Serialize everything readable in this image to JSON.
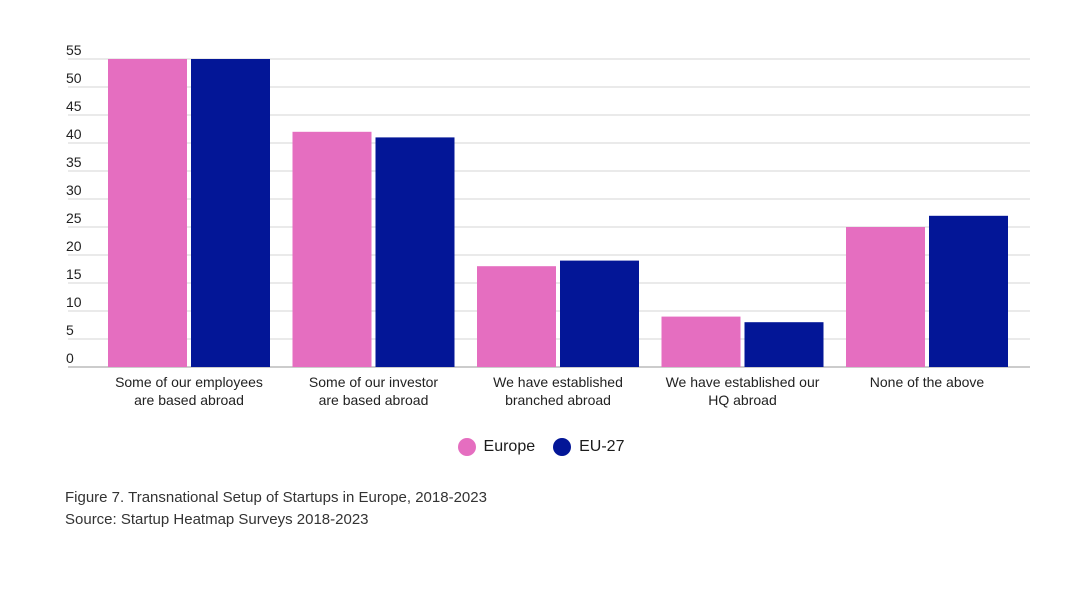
{
  "chart_data": {
    "type": "bar",
    "categories": [
      "Some of our employees\nare based abroad",
      "Some of our investor\nare based abroad",
      "We have established\nbranched abroad",
      "We have established our\nHQ abroad",
      "None of the above"
    ],
    "series": [
      {
        "name": "Europe",
        "color": "#e56ec0",
        "values": [
          55,
          42,
          18,
          9,
          25
        ]
      },
      {
        "name": "EU-27",
        "color": "#031697",
        "values": [
          55,
          41,
          19,
          8,
          27
        ]
      }
    ],
    "yticks": [
      0,
      5,
      10,
      15,
      20,
      25,
      30,
      35,
      40,
      45,
      50,
      55
    ],
    "ylim": [
      0,
      55
    ],
    "grid": true,
    "legend_position": "bottom-center"
  },
  "caption": {
    "line1": "Figure 7. Transnational Setup of Startups in Europe, 2018-2023",
    "line2": "Source: Startup Heatmap Surveys 2018-2023"
  }
}
